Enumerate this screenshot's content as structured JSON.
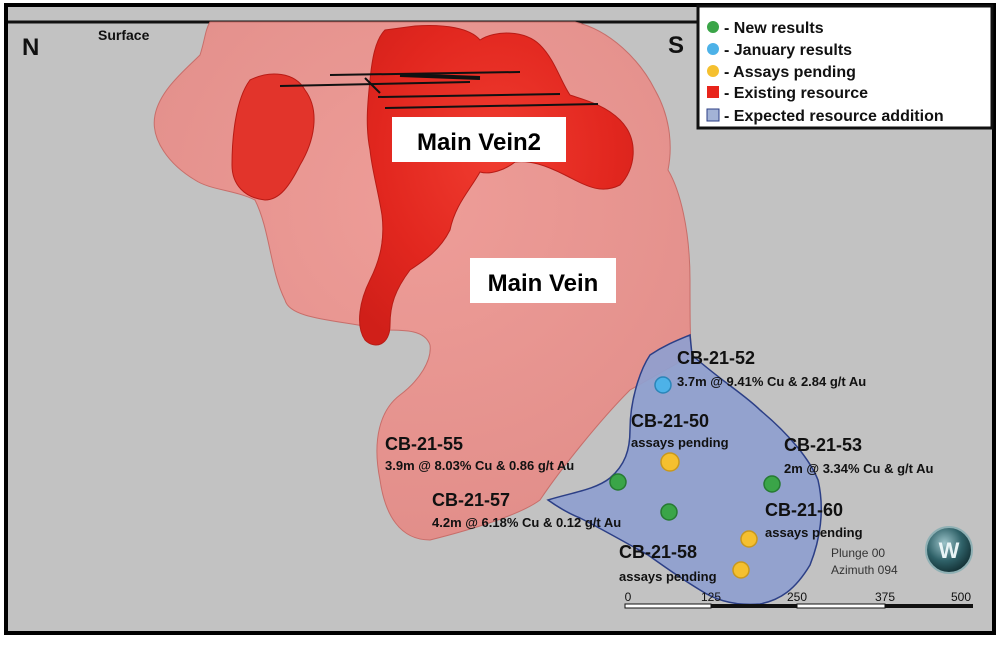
{
  "compass": {
    "north": "N",
    "south": "S"
  },
  "surface_label": "Surface",
  "veins": {
    "main_vein2": "Main Vein2",
    "main_vein": "Main Vein"
  },
  "legend": {
    "items": [
      {
        "label": "- New results",
        "color": "#3aa548",
        "shape": "circle"
      },
      {
        "label": "- January results",
        "color": "#4db2e8",
        "shape": "circle"
      },
      {
        "label": "- Assays pending",
        "color": "#f5c02f",
        "shape": "circle"
      },
      {
        "label": "- Existing resource",
        "color": "#e8251c",
        "shape": "square"
      },
      {
        "label": "- Expected resource addition",
        "color": "#a3b3d6",
        "shape": "square"
      }
    ]
  },
  "drillholes": [
    {
      "id": "CB-21-52",
      "result": "3.7m @ 9.41% Cu & 2.84 g/t Au",
      "status": "January results"
    },
    {
      "id": "CB-21-50",
      "result": "assays pending",
      "status": "Assays pending"
    },
    {
      "id": "CB-21-55",
      "result": "3.9m @ 8.03% Cu & 0.86 g/t Au",
      "status": "New results"
    },
    {
      "id": "CB-21-53",
      "result": "2m @ 3.34% Cu &  g/t Au",
      "status": "New results"
    },
    {
      "id": "CB-21-57",
      "result": "4.2m @ 6.18% Cu & 0.12 g/t Au",
      "status": "New results"
    },
    {
      "id": "CB-21-60",
      "result": "assays pending",
      "status": "Assays pending"
    },
    {
      "id": "CB-21-58",
      "result": "assays pending",
      "status": "Assays pending"
    }
  ],
  "view": {
    "plunge": "Plunge 00",
    "azimuth": "Azimuth 094"
  },
  "scale_bar": {
    "ticks": [
      "0",
      "125",
      "250",
      "375",
      "500"
    ]
  },
  "logo": {
    "letter": "W"
  },
  "colors": {
    "background": "#c2c2c2",
    "resource_light": "#e89a96",
    "resource_dark": "#e02a22",
    "expected_addition": "#8f9fcf",
    "expected_outline": "#2c3f86"
  }
}
